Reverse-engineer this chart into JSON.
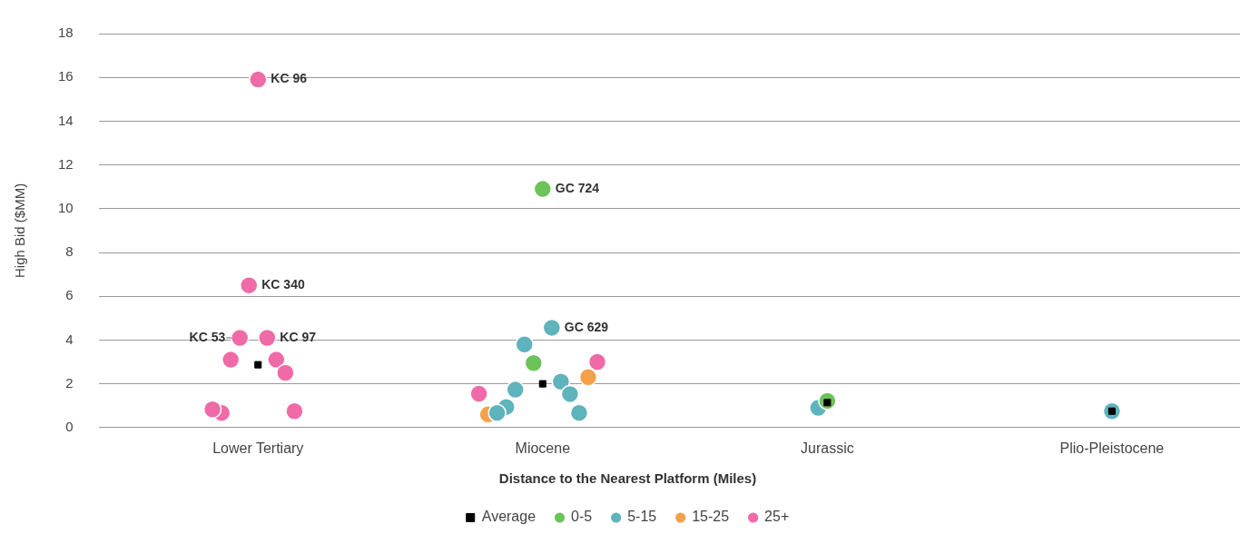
{
  "chart_data": {
    "type": "scatter",
    "ylabel": "High Bid ($MM)",
    "legend_title": "Distance to the Nearest Platform (Miles)",
    "legend": "bottom",
    "grid": "y",
    "marker": "circle",
    "categories": [
      "Lower Tertiary",
      "Miocene",
      "Jurassic",
      "Plio-Pleistocene"
    ],
    "ylim": [
      0,
      18
    ],
    "yticks": [
      0,
      2,
      4,
      6,
      8,
      10,
      12,
      14,
      16,
      18
    ],
    "series": [
      {
        "name": "0-5",
        "color": "#6cc35a",
        "x": [
          "Miocene",
          "Miocene",
          "Jurassic"
        ],
        "values": [
          10.9,
          2.95,
          1.22
        ]
      },
      {
        "name": "5-15",
        "color": "#5fb3bc",
        "x": [
          "Miocene",
          "Miocene",
          "Miocene",
          "Miocene",
          "Miocene",
          "Miocene",
          "Miocene",
          "Miocene",
          "Jurassic",
          "Plio-Pleistocene"
        ],
        "values": [
          4.56,
          3.8,
          2.1,
          1.73,
          1.53,
          0.94,
          0.67,
          0.67,
          0.9,
          0.75
        ]
      },
      {
        "name": "15-25",
        "color": "#f5a04b",
        "x": [
          "Miocene",
          "Miocene"
        ],
        "values": [
          2.3,
          0.6
        ]
      },
      {
        "name": "25+",
        "color": "#ef6aa6",
        "x": [
          "Lower Tertiary",
          "Lower Tertiary",
          "Lower Tertiary",
          "Lower Tertiary",
          "Lower Tertiary",
          "Lower Tertiary",
          "Lower Tertiary",
          "Lower Tertiary",
          "Lower Tertiary",
          "Lower Tertiary",
          "Miocene",
          "Miocene"
        ],
        "values": [
          15.9,
          6.5,
          4.1,
          4.1,
          3.1,
          3.1,
          2.5,
          0.67,
          0.75,
          0.83,
          3.0,
          1.55
        ]
      },
      {
        "name": "Average",
        "color": "#000000",
        "marker": "square",
        "x": [
          "Lower Tertiary",
          "Miocene",
          "Jurassic",
          "Plio-Pleistocene"
        ],
        "values": [
          2.87,
          2.0,
          1.14,
          0.75
        ]
      }
    ],
    "annotations": [
      {
        "text": "KC 96",
        "x": "Lower Tertiary",
        "y": 15.9
      },
      {
        "text": "GC 724",
        "x": "Miocene",
        "y": 10.9
      },
      {
        "text": "KC 340",
        "x": "Lower Tertiary",
        "y": 6.5
      },
      {
        "text": "KC 53",
        "x": "Lower Tertiary",
        "y": 4.1
      },
      {
        "text": "KC 97",
        "x": "Lower Tertiary",
        "y": 4.1
      },
      {
        "text": "GC 629",
        "x": "Miocene",
        "y": 4.56
      }
    ]
  }
}
